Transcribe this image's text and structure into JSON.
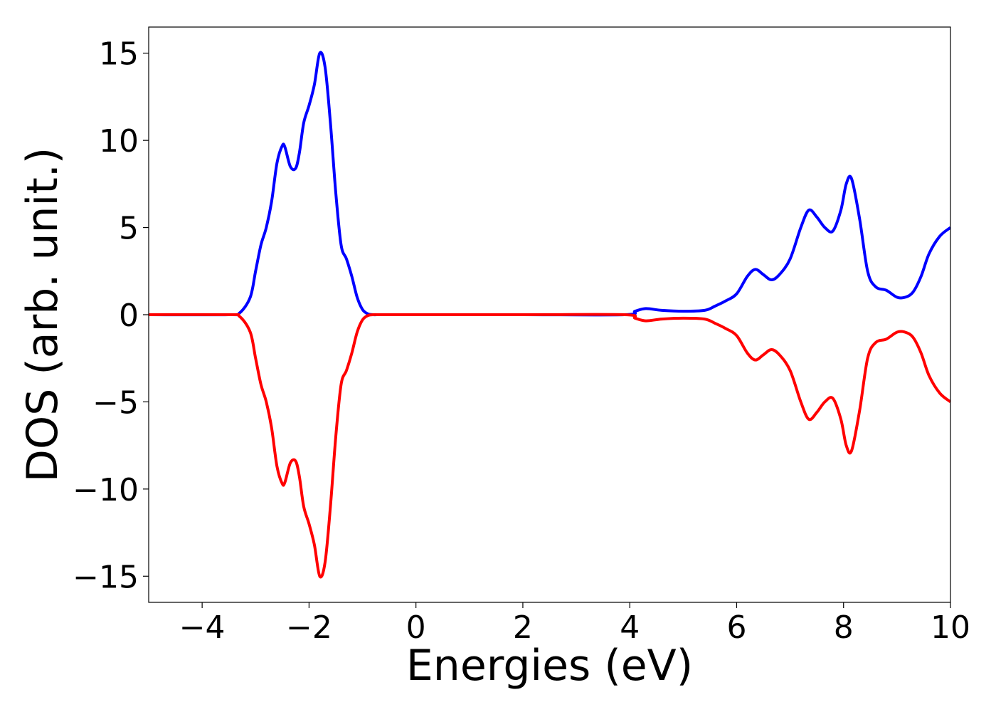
{
  "chart_data": {
    "type": "line",
    "title": "",
    "xlabel": "Energies (eV)",
    "ylabel": "DOS (arb. unit.)",
    "xlim": [
      -5,
      10
    ],
    "ylim": [
      -16.5,
      16.5
    ],
    "xticks": [
      -4,
      -2,
      0,
      2,
      4,
      6,
      8,
      10
    ],
    "yticks": [
      -15,
      -10,
      -5,
      0,
      5,
      10,
      15
    ],
    "grid": false,
    "legend": "none",
    "series": [
      {
        "color": "#0000ff",
        "x": [
          -5.0,
          -3.5,
          -3.3,
          -3.1,
          -3.0,
          -2.9,
          -2.8,
          -2.7,
          -2.6,
          -2.5,
          -2.45,
          -2.35,
          -2.25,
          -2.18,
          -2.1,
          -2.0,
          -1.9,
          -1.8,
          -1.7,
          -1.6,
          -1.5,
          -1.4,
          -1.3,
          -1.2,
          -1.1,
          -1.0,
          -0.9,
          -0.8,
          -0.7,
          -0.6,
          -0.5,
          0.0,
          2.0,
          3.9,
          4.1,
          4.3,
          4.6,
          5.0,
          5.4,
          5.6,
          5.8,
          6.0,
          6.2,
          6.35,
          6.5,
          6.65,
          6.8,
          7.0,
          7.2,
          7.35,
          7.5,
          7.65,
          7.8,
          7.95,
          8.05,
          8.15,
          8.3,
          8.45,
          8.6,
          8.8,
          9.0,
          9.15,
          9.3,
          9.45,
          9.6,
          9.8,
          10.0
        ],
        "y": [
          0.0,
          0.0,
          0.1,
          1.0,
          2.5,
          4.0,
          5.0,
          6.5,
          8.7,
          9.7,
          9.6,
          8.5,
          8.4,
          9.3,
          11.0,
          12.0,
          13.2,
          15.0,
          14.2,
          11.0,
          7.0,
          4.0,
          3.2,
          2.2,
          1.0,
          0.3,
          0.05,
          0.0,
          0.0,
          0.0,
          0.0,
          0.0,
          0.0,
          0.0,
          0.2,
          0.35,
          0.25,
          0.2,
          0.25,
          0.5,
          0.8,
          1.2,
          2.2,
          2.6,
          2.3,
          2.0,
          2.3,
          3.2,
          5.0,
          6.0,
          5.6,
          5.0,
          4.8,
          6.0,
          7.5,
          7.8,
          5.5,
          2.5,
          1.6,
          1.4,
          1.0,
          1.0,
          1.3,
          2.2,
          3.5,
          4.5,
          5.0
        ]
      },
      {
        "color": "#ff0000",
        "x": [
          -5.0,
          -3.5,
          -3.3,
          -3.1,
          -3.0,
          -2.9,
          -2.8,
          -2.7,
          -2.6,
          -2.5,
          -2.45,
          -2.35,
          -2.25,
          -2.18,
          -2.1,
          -2.0,
          -1.9,
          -1.8,
          -1.7,
          -1.6,
          -1.5,
          -1.4,
          -1.3,
          -1.2,
          -1.1,
          -1.0,
          -0.9,
          -0.8,
          -0.7,
          -0.6,
          -0.5,
          0.0,
          2.0,
          3.9,
          4.1,
          4.3,
          4.6,
          5.0,
          5.4,
          5.6,
          5.8,
          6.0,
          6.2,
          6.35,
          6.5,
          6.65,
          6.8,
          7.0,
          7.2,
          7.35,
          7.5,
          7.65,
          7.8,
          7.95,
          8.05,
          8.15,
          8.3,
          8.45,
          8.6,
          8.8,
          9.0,
          9.15,
          9.3,
          9.45,
          9.6,
          9.8,
          10.0
        ],
        "y": [
          0.0,
          0.0,
          -0.1,
          -1.0,
          -2.5,
          -4.0,
          -5.0,
          -6.5,
          -8.7,
          -9.7,
          -9.6,
          -8.5,
          -8.4,
          -9.3,
          -11.0,
          -12.0,
          -13.2,
          -15.0,
          -14.2,
          -11.0,
          -7.0,
          -4.0,
          -3.2,
          -2.2,
          -1.0,
          -0.3,
          -0.05,
          0.0,
          0.0,
          0.0,
          0.0,
          0.0,
          0.0,
          0.0,
          -0.2,
          -0.35,
          -0.25,
          -0.2,
          -0.25,
          -0.5,
          -0.8,
          -1.2,
          -2.2,
          -2.6,
          -2.3,
          -2.0,
          -2.3,
          -3.2,
          -5.0,
          -6.0,
          -5.6,
          -5.0,
          -4.8,
          -6.0,
          -7.5,
          -7.8,
          -5.5,
          -2.5,
          -1.6,
          -1.4,
          -1.0,
          -1.0,
          -1.3,
          -2.2,
          -3.5,
          -4.5,
          -5.0
        ]
      }
    ]
  }
}
